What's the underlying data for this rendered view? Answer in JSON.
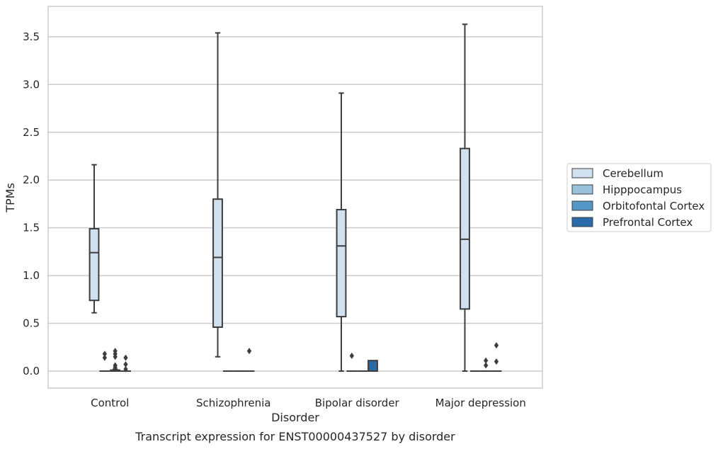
{
  "chart_data": {
    "type": "box",
    "xlabel": "Disorder",
    "ylabel": "TPMs",
    "caption": "Transcript expression for ENST00000437527 by disorder",
    "ylim": [
      -0.18,
      3.78
    ],
    "yticks": [
      "0.0",
      "0.5",
      "1.0",
      "1.5",
      "2.0",
      "2.5",
      "3.0",
      "3.5"
    ],
    "grid": "horizontal",
    "legend_position": "right",
    "categories": [
      "Control",
      "Schizophrenia",
      "Bipolar disorder",
      "Major depression"
    ],
    "series": [
      {
        "name": "Cerebellum",
        "color": "#d2e1f0",
        "boxes": [
          {
            "whislo": 0.61,
            "q1": 0.74,
            "med": 1.24,
            "q3": 1.49,
            "whishi": 2.16,
            "fliers": []
          },
          {
            "whislo": 0.15,
            "q1": 0.46,
            "med": 1.19,
            "q3": 1.8,
            "whishi": 3.54,
            "fliers": []
          },
          {
            "whislo": 0.0,
            "q1": 0.57,
            "med": 1.31,
            "q3": 1.69,
            "whishi": 2.91,
            "fliers": []
          },
          {
            "whislo": 0.0,
            "q1": 0.65,
            "med": 1.38,
            "q3": 2.33,
            "whishi": 3.63,
            "fliers": []
          }
        ]
      },
      {
        "name": "Hipppocampus",
        "color": "#9ac2dc",
        "boxes": [
          {
            "whislo": 0.0,
            "q1": 0.0,
            "med": 0.0,
            "q3": 0.0,
            "whishi": 0.0,
            "fliers": [
              0.14,
              0.18
            ]
          },
          {
            "whislo": 0.0,
            "q1": 0.0,
            "med": 0.0,
            "q3": 0.0,
            "whishi": 0.0,
            "fliers": []
          },
          {
            "whislo": 0.0,
            "q1": 0.0,
            "med": 0.0,
            "q3": 0.0,
            "whishi": 0.0,
            "fliers": [
              0.16
            ]
          },
          {
            "whislo": 0.0,
            "q1": 0.0,
            "med": 0.0,
            "q3": 0.0,
            "whishi": 0.0,
            "fliers": []
          }
        ]
      },
      {
        "name": "Orbitofontal Cortex",
        "color": "#5496c5",
        "boxes": [
          {
            "whislo": 0.0,
            "q1": 0.0,
            "med": 0.0,
            "q3": 0.01,
            "whishi": 0.02,
            "fliers": [
              0.04,
              0.06,
              0.15,
              0.18,
              0.21
            ]
          },
          {
            "whislo": 0.0,
            "q1": 0.0,
            "med": 0.0,
            "q3": 0.0,
            "whishi": 0.0,
            "fliers": []
          },
          {
            "whislo": 0.0,
            "q1": 0.0,
            "med": 0.0,
            "q3": 0.0,
            "whishi": 0.0,
            "fliers": []
          },
          {
            "whislo": 0.0,
            "q1": 0.0,
            "med": 0.0,
            "q3": 0.0,
            "whishi": 0.0,
            "fliers": [
              0.06,
              0.11
            ]
          }
        ]
      },
      {
        "name": "Prefrontal Cortex",
        "color": "#2a6aa8",
        "boxes": [
          {
            "whislo": 0.0,
            "q1": 0.0,
            "med": 0.0,
            "q3": 0.0,
            "whishi": 0.0,
            "fliers": [
              0.02,
              0.07,
              0.14
            ]
          },
          {
            "whislo": 0.0,
            "q1": 0.0,
            "med": 0.0,
            "q3": 0.0,
            "whishi": 0.0,
            "fliers": [
              0.21
            ]
          },
          {
            "whislo": 0.0,
            "q1": 0.0,
            "med": 0.0,
            "q3": 0.11,
            "whishi": 0.11,
            "fliers": []
          },
          {
            "whislo": 0.0,
            "q1": 0.0,
            "med": 0.0,
            "q3": 0.0,
            "whishi": 0.0,
            "fliers": [
              0.1,
              0.27
            ]
          }
        ]
      }
    ]
  }
}
